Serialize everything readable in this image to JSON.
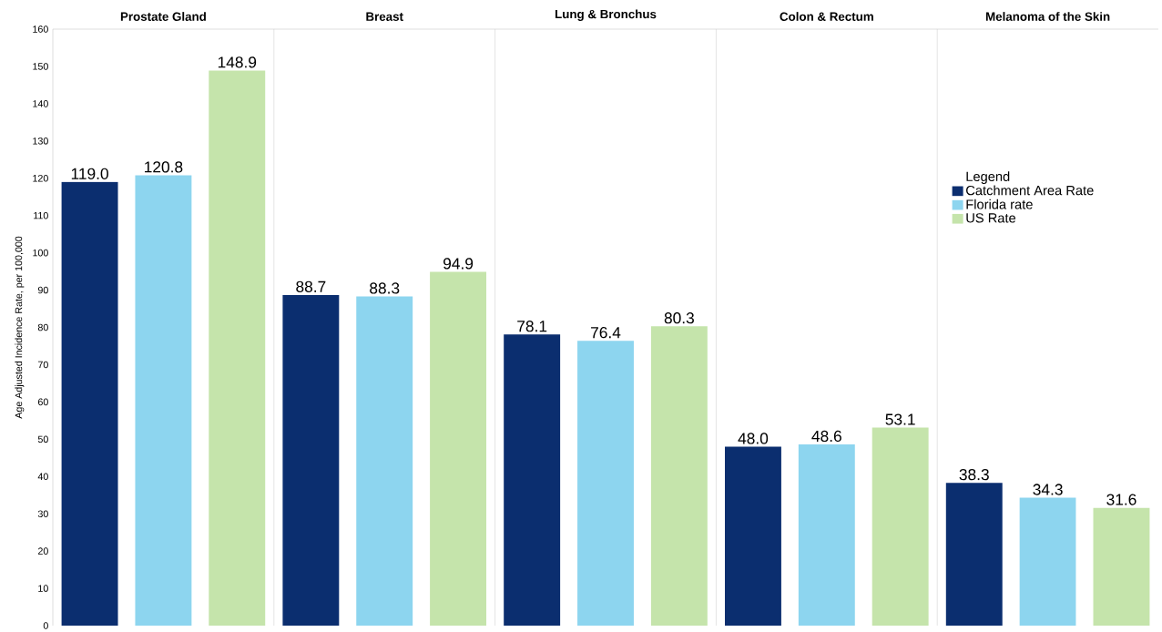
{
  "chart_data": {
    "type": "bar",
    "categories": [
      "Prostate Gland",
      "Breast",
      "Lung & Bronchus",
      "Colon & Rectum",
      "Melanoma of the Skin"
    ],
    "ylabel": "Age Adjusted Incidence Rate, per 100,000",
    "legend_title": "Legend",
    "series": [
      {
        "name": "Catchment Area Rate",
        "color": "#0b2e6f",
        "values": [
          119.0,
          88.7,
          78.1,
          48.0,
          38.3
        ],
        "value_labels": [
          "119.0",
          "88.7",
          "78.1",
          "48.0",
          "38.3"
        ]
      },
      {
        "name": "Florida rate",
        "color": "#8dd5ef",
        "values": [
          120.8,
          88.3,
          76.4,
          48.6,
          34.3
        ],
        "value_labels": [
          "120.8",
          "88.3",
          "76.4",
          "48.6",
          "34.3"
        ]
      },
      {
        "name": "US Rate",
        "color": "#c5e4ab",
        "values": [
          148.9,
          94.9,
          80.3,
          53.1,
          31.6
        ],
        "value_labels": [
          "148.9",
          "94.9",
          "80.3",
          "53.1",
          "31.6"
        ]
      }
    ],
    "ylim": [
      0,
      160
    ],
    "yticks": [
      0,
      10,
      20,
      30,
      40,
      50,
      60,
      70,
      80,
      90,
      100,
      110,
      120,
      130,
      140,
      150,
      160
    ],
    "grid": false,
    "legend": "top right"
  }
}
